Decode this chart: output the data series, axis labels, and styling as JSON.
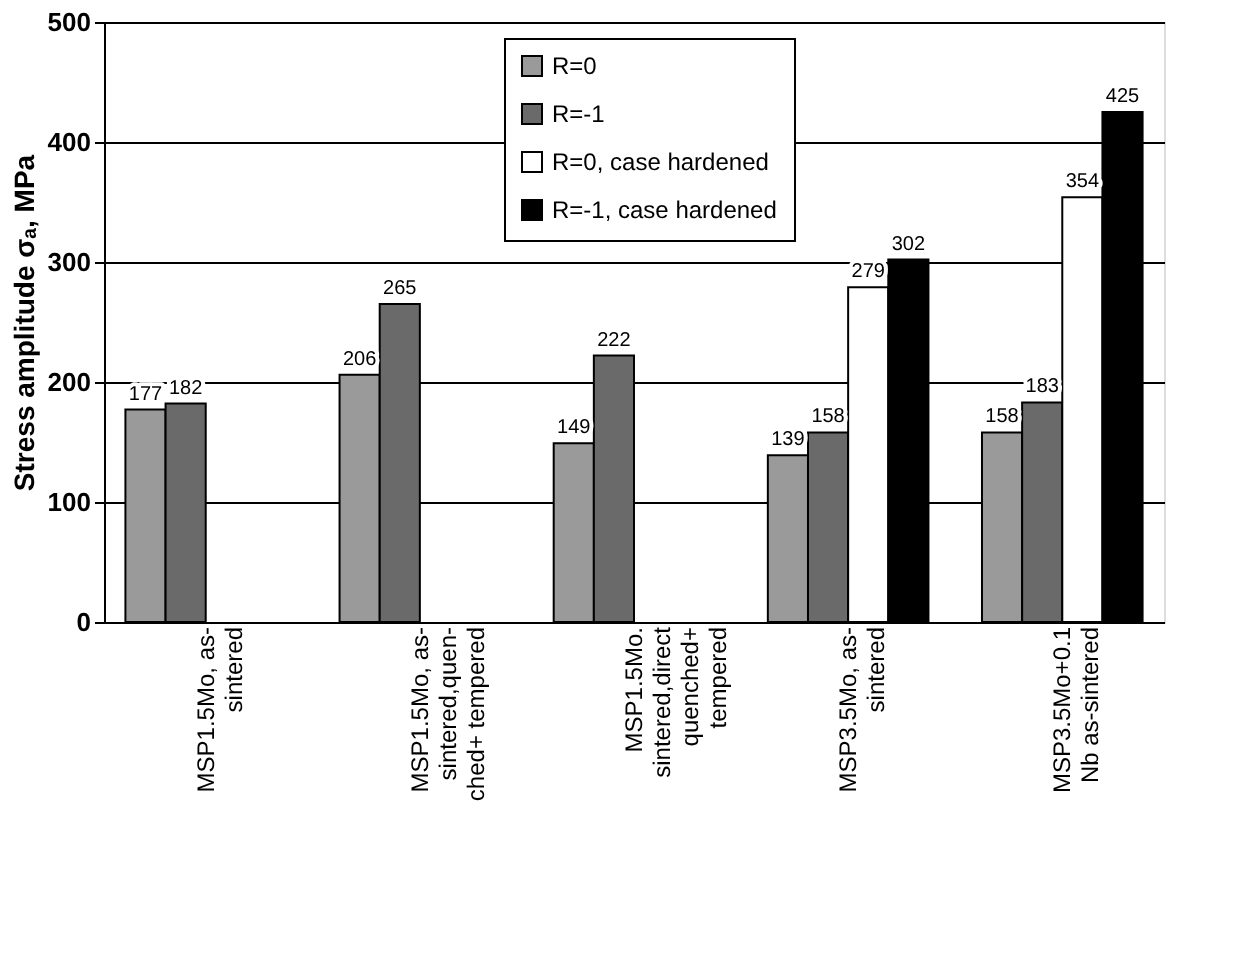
{
  "chart_data": {
    "type": "bar",
    "ylabel": "Stress amplitude σₐ, MPa",
    "categories": [
      "MSP1.5Mo, as-\nsintered",
      "MSP1.5Mo, as-\nsintered,quen-\nched+ tempered",
      "MSP1.5Mo.\nsintered,direct\nquenched+\ntempered",
      "MSP3.5Mo, as-\nsintered",
      "MSP3.5Mo+0.1\nNb  as-sintered"
    ],
    "series": [
      {
        "name": "R=0",
        "color": "#9a9a9a",
        "values": [
          177,
          206,
          149,
          139,
          158
        ]
      },
      {
        "name": "R=-1",
        "color": "#6a6a6a",
        "values": [
          182,
          265,
          222,
          158,
          183
        ]
      },
      {
        "name": "R=0, case hardened",
        "color": "#ffffff",
        "values": [
          null,
          null,
          null,
          279,
          354
        ]
      },
      {
        "name": "R=-1, case hardened",
        "color": "#000000",
        "values": [
          null,
          null,
          null,
          302,
          425
        ]
      }
    ],
    "ylim": [
      0,
      500
    ],
    "yticks": [
      0,
      100,
      200,
      300,
      400,
      500
    ],
    "grid": "y",
    "legend": "top",
    "data_labels": true
  }
}
